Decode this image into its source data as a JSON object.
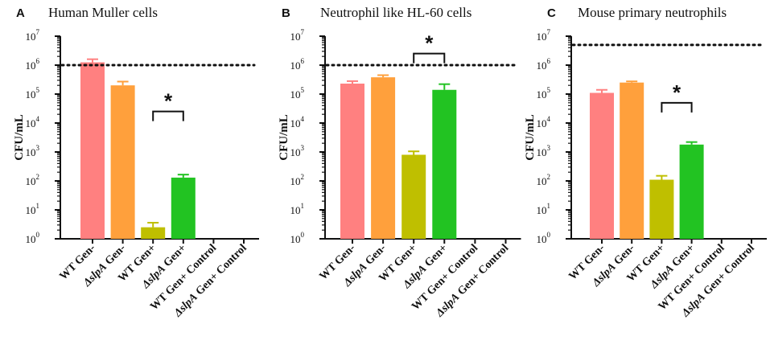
{
  "figure": {
    "y_scale": "log10",
    "colors": [
      "#ff8080",
      "#ffa03c",
      "#bfbf00",
      "#22c322",
      "#999999",
      "#999999"
    ]
  },
  "chart_data": [
    {
      "type": "bar",
      "panel": "A",
      "title": "Human Muller cells",
      "ylabel": "CFU/mL",
      "ylim": [
        1,
        10000000
      ],
      "yticks": [
        {
          "base": "10",
          "exp": "0"
        },
        {
          "base": "10",
          "exp": "1"
        },
        {
          "base": "10",
          "exp": "2"
        },
        {
          "base": "10",
          "exp": "3"
        },
        {
          "base": "10",
          "exp": "4"
        },
        {
          "base": "10",
          "exp": "5"
        },
        {
          "base": "10",
          "exp": "6"
        },
        {
          "base": "10",
          "exp": "7"
        }
      ],
      "categories": [
        {
          "prefix": "WT",
          "suffix": " Gen-"
        },
        {
          "prefix": "ΔslpA",
          "suffix": " Gen-"
        },
        {
          "prefix": "WT",
          "suffix": " Gen+"
        },
        {
          "prefix": "ΔslpA",
          "suffix": " Gen+"
        },
        {
          "prefix": "WT",
          "suffix": " Gen+ Control"
        },
        {
          "prefix": "ΔslpA",
          "suffix": " Gen+ Control"
        }
      ],
      "values": [
        1250000,
        200000,
        2.5,
        130,
        null,
        null
      ],
      "error_upper": [
        1600000,
        270000,
        3.6,
        165,
        null,
        null
      ],
      "reference_line": 1000000,
      "significance": {
        "from": 2,
        "to": 3,
        "label": "*",
        "level": 25000
      }
    },
    {
      "type": "bar",
      "panel": "B",
      "title": "Neutrophil like HL-60 cells",
      "ylabel": "CFU/mL",
      "ylim": [
        1,
        10000000
      ],
      "yticks": [
        {
          "base": "10",
          "exp": "0"
        },
        {
          "base": "10",
          "exp": "1"
        },
        {
          "base": "10",
          "exp": "2"
        },
        {
          "base": "10",
          "exp": "3"
        },
        {
          "base": "10",
          "exp": "4"
        },
        {
          "base": "10",
          "exp": "5"
        },
        {
          "base": "10",
          "exp": "6"
        },
        {
          "base": "10",
          "exp": "7"
        }
      ],
      "categories": [
        {
          "prefix": "WT",
          "suffix": " Gen-"
        },
        {
          "prefix": "ΔslpA",
          "suffix": " Gen-"
        },
        {
          "prefix": "WT",
          "suffix": " Gen+"
        },
        {
          "prefix": "ΔslpA",
          "suffix": " Gen+"
        },
        {
          "prefix": "WT",
          "suffix": " Gen+ Control"
        },
        {
          "prefix": "ΔslpA",
          "suffix": " Gen+ Control"
        }
      ],
      "values": [
        230000,
        380000,
        800,
        140000,
        null,
        null
      ],
      "error_upper": [
        280000,
        450000,
        1050,
        220000,
        null,
        null
      ],
      "reference_line": 1000000,
      "significance": {
        "from": 2,
        "to": 3,
        "label": "*",
        "level": 2500000
      }
    },
    {
      "type": "bar",
      "panel": "C",
      "title": "Mouse primary neutrophils",
      "ylabel": "CFU/mL",
      "ylim": [
        1,
        10000000
      ],
      "yticks": [
        {
          "base": "10",
          "exp": "0"
        },
        {
          "base": "10",
          "exp": "1"
        },
        {
          "base": "10",
          "exp": "2"
        },
        {
          "base": "10",
          "exp": "3"
        },
        {
          "base": "10",
          "exp": "4"
        },
        {
          "base": "10",
          "exp": "5"
        },
        {
          "base": "10",
          "exp": "6"
        },
        {
          "base": "10",
          "exp": "7"
        }
      ],
      "categories": [
        {
          "prefix": "WT",
          "suffix": " Gen-"
        },
        {
          "prefix": "ΔslpA",
          "suffix": " Gen-"
        },
        {
          "prefix": "WT",
          "suffix": " Gen+"
        },
        {
          "prefix": "ΔslpA",
          "suffix": " Gen+"
        },
        {
          "prefix": "WT",
          "suffix": " Gen+ Control"
        },
        {
          "prefix": "ΔslpA",
          "suffix": " Gen+ Control"
        }
      ],
      "values": [
        110000,
        250000,
        110,
        1800,
        null,
        null
      ],
      "error_upper": [
        140000,
        275000,
        150,
        2200,
        null,
        null
      ],
      "reference_line": 5000000,
      "significance": {
        "from": 2,
        "to": 3,
        "label": "*",
        "level": 50000
      }
    }
  ]
}
